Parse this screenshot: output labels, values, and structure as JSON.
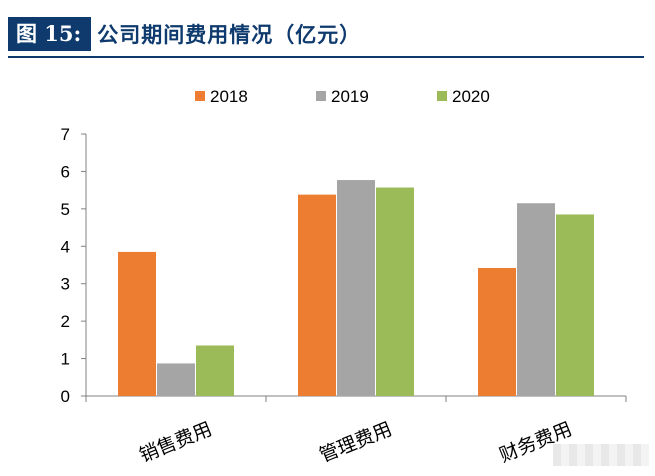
{
  "figure": {
    "label": "图 15:",
    "title": "公司期间费用情况（亿元）"
  },
  "chart_data": {
    "type": "bar",
    "categories": [
      "销售费用",
      "管理费用",
      "财务费用"
    ],
    "series": [
      {
        "name": "2018",
        "color": "#ed7d31",
        "values": [
          3.85,
          5.38,
          3.42
        ]
      },
      {
        "name": "2019",
        "color": "#a5a5a5",
        "values": [
          0.87,
          5.77,
          5.15
        ]
      },
      {
        "name": "2020",
        "color": "#9bbb59",
        "values": [
          1.35,
          5.57,
          4.85
        ]
      }
    ],
    "ylim": [
      0,
      7
    ],
    "yticks": [
      "0",
      "1",
      "2",
      "3",
      "4",
      "5",
      "6",
      "7"
    ],
    "grid": false,
    "legend": "top-center"
  }
}
